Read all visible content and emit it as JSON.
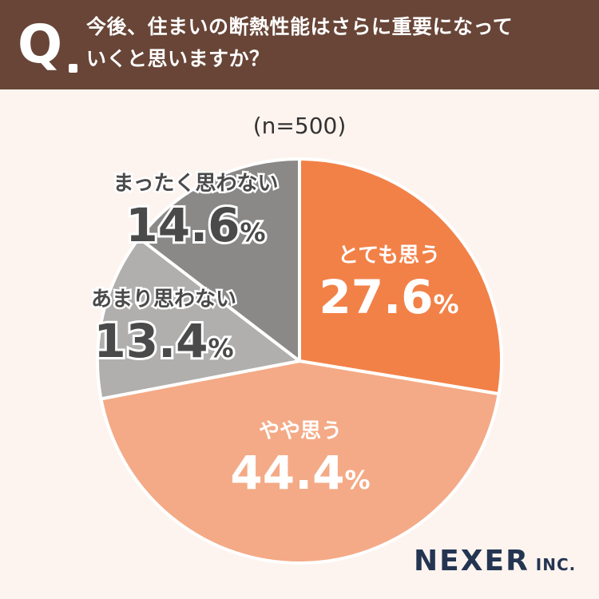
{
  "header": {
    "q_mark": "Q",
    "question_line1": "今後、住まいの断熱性能はさらに重要になって",
    "question_line2": "いくと思いますか？"
  },
  "sample_size": "(n=500)",
  "brand": {
    "name": "NEXER",
    "suffix": "INC."
  },
  "chart_data": {
    "type": "pie",
    "title": "今後、住まいの断熱性能はさらに重要になっていくと思いますか？",
    "n": 500,
    "unit": "%",
    "start": "12 o'clock",
    "direction": "clockwise",
    "slices": [
      {
        "label": "とても思う",
        "value": 27.6,
        "value_text": "27.6",
        "color": "#f28148"
      },
      {
        "label": "やや思う",
        "value": 44.4,
        "value_text": "44.4",
        "color": "#f4aa86"
      },
      {
        "label": "あまり思わない",
        "value": 13.4,
        "value_text": "13.4",
        "color": "#b0afae"
      },
      {
        "label": "まったく思わない",
        "value": 14.6,
        "value_text": "14.6",
        "color": "#8a8988"
      }
    ],
    "label_colors": {
      "on_slice": "#ffffff",
      "outline": "#ffffff"
    }
  }
}
